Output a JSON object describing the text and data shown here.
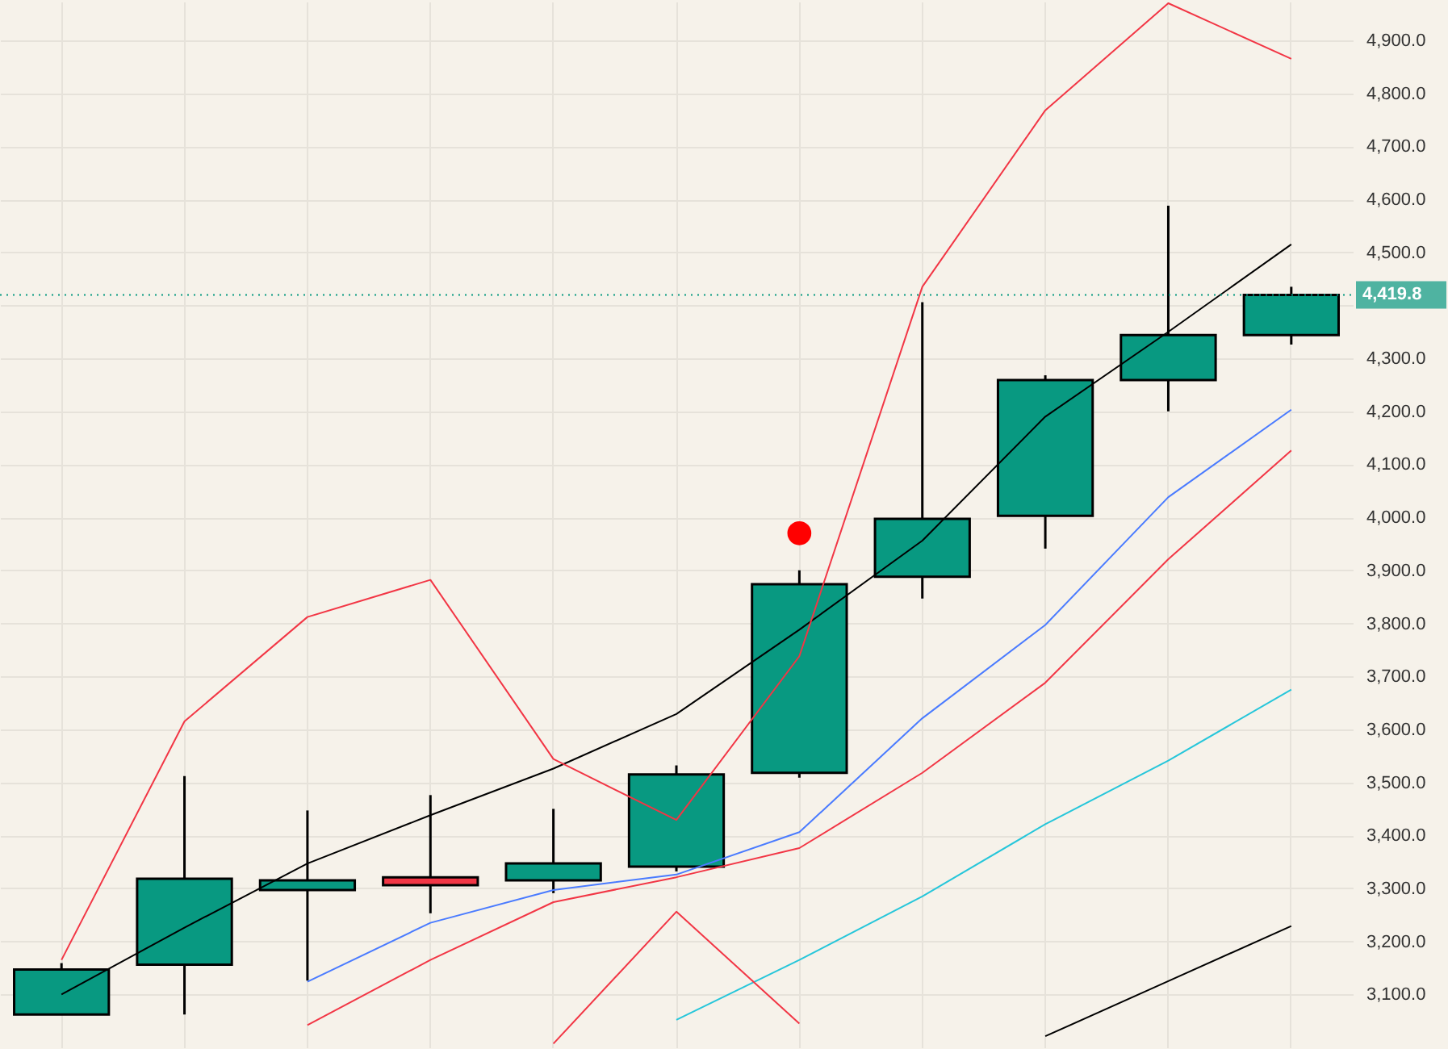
{
  "chart_data": {
    "type": "candlestick",
    "categories": [
      null,
      null,
      null,
      null,
      null,
      null,
      null,
      null,
      null,
      null,
      null
    ],
    "ohlc": [
      [
        3062,
        3159,
        3062,
        3147
      ],
      [
        3156,
        3512,
        3062,
        3318
      ],
      [
        3297,
        3447,
        3126,
        3315
      ],
      [
        3321,
        3476,
        3253,
        3306
      ],
      [
        3315,
        3450,
        3291,
        3347
      ],
      [
        3341,
        3532,
        3332,
        3515
      ],
      [
        3518,
        3900,
        3509,
        3874
      ],
      [
        3888,
        4406,
        3847,
        3997
      ],
      [
        4003,
        4268,
        3941,
        4259
      ],
      [
        4259,
        4588,
        4200,
        4344
      ],
      [
        4344,
        4435,
        4326,
        4419.8
      ]
    ],
    "colors": [
      "#089981",
      "#089981",
      "#089981",
      "#f23645",
      "#089981",
      "#089981",
      "#089981",
      "#089981",
      "#089981",
      "#089981",
      "#089981"
    ],
    "series": [
      {
        "type": "line",
        "color": "#000000",
        "line_style": "solid",
        "values": [
          3100,
          3226,
          3347,
          3438,
          3526,
          3629,
          3788,
          3956,
          4190,
          4350,
          4515
        ]
      },
      {
        "type": "line",
        "color": "#4a7bff",
        "line_style": "solid",
        "values": [
          null,
          null,
          3124,
          3235,
          3297,
          3326,
          3406,
          3621,
          3797,
          4038,
          4203
        ]
      },
      {
        "type": "line",
        "color": "#f23645",
        "line_style": "solid",
        "values": [
          null,
          null,
          3042,
          3165,
          3274,
          3321,
          3376,
          3518,
          3688,
          3921,
          4126
        ]
      },
      {
        "type": "line",
        "color": "#f23645",
        "line_style": "solid",
        "values": [
          3165,
          3615,
          3812,
          3882,
          3544,
          3429,
          3738,
          4435,
          4768,
          4970,
          4865
        ]
      },
      {
        "type": "line",
        "color": "#26c6da",
        "line_style": "solid",
        "values": [
          null,
          null,
          null,
          null,
          null,
          3052,
          3165,
          3285,
          3421,
          3541,
          3675
        ]
      },
      {
        "type": "line",
        "color": "#f23645",
        "line_style": "solid",
        "values": [
          null,
          null,
          null,
          null,
          3007,
          3256,
          3045,
          null,
          null,
          null,
          null
        ]
      },
      {
        "type": "line",
        "color": "#000000",
        "line_style": "solid",
        "values": [
          null,
          null,
          null,
          null,
          null,
          null,
          null,
          null,
          3021,
          3125,
          3229
        ]
      },
      {
        "type": "scatter",
        "color": "#ff0000",
        "marker": "circle",
        "values": [
          null,
          null,
          null,
          null,
          null,
          null,
          3970,
          null,
          null,
          null,
          null
        ]
      }
    ],
    "ref_lines": [
      {
        "axis": "y",
        "value": 4419.8,
        "label": "4,419.8",
        "color": "#089981",
        "line_style": "dotted"
      }
    ],
    "ylim": [
      3000,
      4973
    ],
    "yticks": [
      {
        "value": 3100,
        "label": "3,100.0"
      },
      {
        "value": 3200,
        "label": "3,200.0"
      },
      {
        "value": 3300,
        "label": "3,300.0"
      },
      {
        "value": 3400,
        "label": "3,400.0"
      },
      {
        "value": 3500,
        "label": "3,500.0"
      },
      {
        "value": 3600,
        "label": "3,600.0"
      },
      {
        "value": 3700,
        "label": "3,700.0"
      },
      {
        "value": 3800,
        "label": "3,800.0"
      },
      {
        "value": 3900,
        "label": "3,900.0"
      },
      {
        "value": 4000,
        "label": "4,000.0"
      },
      {
        "value": 4100,
        "label": "4,100.0"
      },
      {
        "value": 4200,
        "label": "4,200.0"
      },
      {
        "value": 4300,
        "label": "4,300.0"
      },
      {
        "value": 4400,
        "label": null
      },
      {
        "value": 4500,
        "label": "4,500.0"
      },
      {
        "value": 4600,
        "label": "4,600.0"
      },
      {
        "value": 4700,
        "label": "4,700.0"
      },
      {
        "value": 4800,
        "label": "4,800.0"
      },
      {
        "value": 4900,
        "label": "4,900.0"
      }
    ],
    "grid": true,
    "tick_labels": "y"
  }
}
